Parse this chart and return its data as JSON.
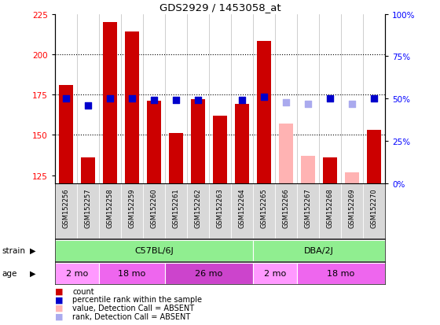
{
  "title": "GDS2929 / 1453058_at",
  "samples": [
    "GSM152256",
    "GSM152257",
    "GSM152258",
    "GSM152259",
    "GSM152260",
    "GSM152261",
    "GSM152262",
    "GSM152263",
    "GSM152264",
    "GSM152265",
    "GSM152266",
    "GSM152267",
    "GSM152268",
    "GSM152269",
    "GSM152270"
  ],
  "counts": [
    181,
    136,
    220,
    214,
    171,
    151,
    172,
    162,
    169,
    208,
    null,
    null,
    136,
    null,
    153
  ],
  "counts_absent": [
    null,
    null,
    null,
    null,
    null,
    null,
    null,
    null,
    null,
    null,
    157,
    137,
    null,
    127,
    null
  ],
  "percentile_ranks": [
    50,
    46,
    50,
    50,
    49,
    49,
    49,
    null,
    49,
    51,
    null,
    null,
    50,
    null,
    50
  ],
  "percentile_ranks_absent": [
    null,
    null,
    null,
    null,
    null,
    null,
    null,
    null,
    null,
    null,
    48,
    47,
    null,
    47,
    null
  ],
  "bar_color": "#cc0000",
  "bar_color_absent": "#ffb3b3",
  "dot_color": "#0000cc",
  "dot_color_absent": "#aaaaee",
  "ylim_left": [
    120,
    225
  ],
  "ylim_right": [
    0,
    100
  ],
  "yticks_left": [
    125,
    150,
    175,
    200,
    225
  ],
  "yticks_right": [
    0,
    25,
    50,
    75,
    100
  ],
  "ytick_right_labels": [
    "0%",
    "25%",
    "50%",
    "75%",
    "100%"
  ],
  "hlines": [
    150,
    175,
    200
  ],
  "strain_labels": [
    {
      "label": "C57BL/6J",
      "start": 0,
      "end": 9,
      "color": "#90ee90"
    },
    {
      "label": "DBA/2J",
      "start": 9,
      "end": 15,
      "color": "#90ee90"
    }
  ],
  "age_labels": [
    {
      "label": "2 mo",
      "start": 0,
      "end": 2,
      "color": "#ff99ff"
    },
    {
      "label": "18 mo",
      "start": 2,
      "end": 5,
      "color": "#ee66ee"
    },
    {
      "label": "26 mo",
      "start": 5,
      "end": 9,
      "color": "#cc44cc"
    },
    {
      "label": "2 mo",
      "start": 9,
      "end": 11,
      "color": "#ff99ff"
    },
    {
      "label": "18 mo",
      "start": 11,
      "end": 15,
      "color": "#ee66ee"
    }
  ],
  "legend_items": [
    {
      "label": "count",
      "color": "#cc0000"
    },
    {
      "label": "percentile rank within the sample",
      "color": "#0000cc"
    },
    {
      "label": "value, Detection Call = ABSENT",
      "color": "#ffb3b3"
    },
    {
      "label": "rank, Detection Call = ABSENT",
      "color": "#aaaaee"
    }
  ],
  "strain_row_label": "strain",
  "age_row_label": "age",
  "background_color": "#ffffff",
  "bar_width": 0.65,
  "dot_size": 35
}
